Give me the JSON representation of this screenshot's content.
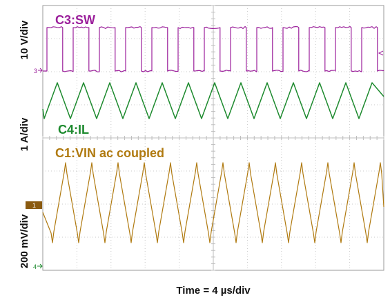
{
  "chart_data": {
    "type": "line",
    "title": "",
    "xlabel": "Time = 4 µs/div",
    "x_divisions": 10,
    "y_divisions": 8,
    "grid": true,
    "series": [
      {
        "name": "C3:SW",
        "ylabel": "10 V/div",
        "color": "#9b1f9b",
        "waveform": "square",
        "periods": 13,
        "duty_high": 0.6,
        "ground_marker": "3"
      },
      {
        "name": "C4:IL",
        "ylabel": "1 A/div",
        "color": "#1d8a2e",
        "waveform": "triangle",
        "periods": 13
      },
      {
        "name": "C1:VIN ac coupled",
        "ylabel": "200 mV/div",
        "color": "#b07a10",
        "waveform": "triangle",
        "periods": 13,
        "ground_marker": "1"
      }
    ],
    "extra_marker": "4"
  }
}
